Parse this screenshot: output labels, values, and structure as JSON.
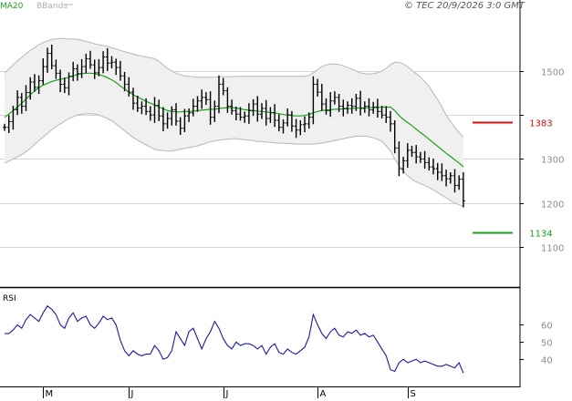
{
  "header": {
    "legend_ma": "MA20",
    "legend_bb": "BBands",
    "copyright": "© TEC 20/9/2026 3:0 GMT"
  },
  "colors": {
    "ma": "#1aa31a",
    "bands_fill": "#f0f0f0",
    "bands_line": "#b8b8b8",
    "ohlc": "#000000",
    "rsi": "#1a1aa0",
    "resistance": "#d01010",
    "support": "#1aa31a",
    "grid": "#d4d4d4",
    "frame": "#000000"
  },
  "chart_data": [
    {
      "type": "ohlc",
      "title": "",
      "ylim": [
        1040,
        1620
      ],
      "yticks": [
        1100,
        1200,
        1300,
        1400,
        1500
      ],
      "ytick_labels": [
        "1100",
        "1200",
        "1300",
        "",
        "1500"
      ],
      "xlabels": [
        {
          "label": "M",
          "index": 9
        },
        {
          "label": "J",
          "index": 29
        },
        {
          "label": "J",
          "index": 51
        },
        {
          "label": "A",
          "index": 73
        },
        {
          "label": "S",
          "index": 94
        }
      ],
      "levels": [
        {
          "name": "resistance",
          "label": "1383",
          "value": 1383
        },
        {
          "name": "support",
          "label": "1134",
          "value": 1134
        }
      ],
      "series": [
        {
          "name": "price",
          "values": [
            1372,
            1385,
            1412,
            1440,
            1420,
            1451,
            1475,
            1463,
            1478,
            1510,
            1540,
            1512,
            1495,
            1470,
            1462,
            1488,
            1505,
            1494,
            1510,
            1528,
            1514,
            1496,
            1508,
            1532,
            1518,
            1520,
            1508,
            1489,
            1470,
            1452,
            1427,
            1416,
            1420,
            1408,
            1400,
            1422,
            1398,
            1380,
            1392,
            1412,
            1386,
            1370,
            1398,
            1405,
            1420,
            1432,
            1440,
            1435,
            1395,
            1420,
            1470,
            1455,
            1420,
            1410,
            1402,
            1395,
            1398,
            1410,
            1425,
            1402,
            1415,
            1392,
            1405,
            1388,
            1372,
            1382,
            1400,
            1375,
            1366,
            1378,
            1380,
            1395,
            1470,
            1452,
            1425,
            1410,
            1432,
            1440,
            1420,
            1415,
            1422,
            1420,
            1438,
            1415,
            1420,
            1412,
            1418,
            1408,
            1400,
            1395,
            1380,
            1325,
            1278,
            1296,
            1320,
            1315,
            1305,
            1300,
            1292,
            1282,
            1278,
            1270,
            1262,
            1255,
            1262,
            1240,
            1254,
            1205
          ]
        },
        {
          "name": "MA20",
          "values": [
            1395,
            1402,
            1410,
            1418,
            1427,
            1436,
            1446,
            1455,
            1462,
            1468,
            1472,
            1476,
            1479,
            1481,
            1483,
            1486,
            1489,
            1492,
            1494,
            1495,
            1495,
            1494,
            1492,
            1489,
            1485,
            1480,
            1474,
            1466,
            1459,
            1452,
            1446,
            1441,
            1436,
            1431,
            1427,
            1423,
            1418,
            1414,
            1410,
            1408,
            1407,
            1407,
            1408,
            1408,
            1409,
            1410,
            1411,
            1412,
            1413,
            1413,
            1415,
            1416,
            1417,
            1417,
            1416,
            1414,
            1412,
            1411,
            1410,
            1409,
            1408,
            1407,
            1406,
            1405,
            1403,
            1401,
            1400,
            1399,
            1398,
            1398,
            1399,
            1401,
            1405,
            1408,
            1410,
            1411,
            1412,
            1413,
            1413,
            1414,
            1414,
            1415,
            1416,
            1416,
            1416,
            1417,
            1417,
            1417,
            1418,
            1418,
            1418,
            1410,
            1399,
            1390,
            1383,
            1376,
            1368,
            1360,
            1353,
            1345,
            1337,
            1329,
            1321,
            1313,
            1306,
            1298,
            1291,
            1282
          ]
        },
        {
          "name": "BBands upper",
          "values": [
            1495,
            1505,
            1514,
            1523,
            1531,
            1539,
            1547,
            1553,
            1560,
            1565,
            1568,
            1572,
            1573,
            1574,
            1574,
            1573,
            1573,
            1572,
            1570,
            1567,
            1565,
            1562,
            1560,
            1558,
            1556,
            1553,
            1550,
            1547,
            1544,
            1541,
            1539,
            1536,
            1534,
            1532,
            1530,
            1528,
            1522,
            1514,
            1506,
            1500,
            1495,
            1492,
            1489,
            1488,
            1487,
            1486,
            1486,
            1486,
            1486,
            1486,
            1487,
            1487,
            1487,
            1487,
            1488,
            1488,
            1488,
            1488,
            1488,
            1488,
            1488,
            1488,
            1488,
            1488,
            1488,
            1488,
            1488,
            1488,
            1488,
            1488,
            1488,
            1490,
            1496,
            1503,
            1510,
            1514,
            1516,
            1516,
            1515,
            1512,
            1508,
            1504,
            1500,
            1496,
            1494,
            1493,
            1494,
            1496,
            1500,
            1506,
            1514,
            1520,
            1520,
            1516,
            1510,
            1502,
            1494,
            1486,
            1476,
            1465,
            1450,
            1435,
            1418,
            1400,
            1385,
            1372,
            1360,
            1350
          ]
        },
        {
          "name": "BBands lower",
          "values": [
            1290,
            1295,
            1300,
            1305,
            1310,
            1317,
            1324,
            1333,
            1342,
            1350,
            1358,
            1366,
            1374,
            1380,
            1386,
            1392,
            1396,
            1400,
            1402,
            1403,
            1403,
            1402,
            1400,
            1396,
            1392,
            1387,
            1380,
            1372,
            1364,
            1356,
            1349,
            1343,
            1337,
            1332,
            1327,
            1322,
            1320,
            1319,
            1318,
            1318,
            1320,
            1322,
            1324,
            1326,
            1328,
            1330,
            1333,
            1336,
            1339,
            1341,
            1343,
            1344,
            1345,
            1346,
            1346,
            1345,
            1344,
            1343,
            1342,
            1340,
            1340,
            1339,
            1338,
            1337,
            1336,
            1336,
            1335,
            1335,
            1334,
            1334,
            1334,
            1334,
            1334,
            1335,
            1336,
            1338,
            1340,
            1342,
            1344,
            1346,
            1348,
            1350,
            1352,
            1352,
            1352,
            1350,
            1348,
            1345,
            1340,
            1330,
            1318,
            1300,
            1285,
            1272,
            1262,
            1254,
            1248,
            1244,
            1240,
            1235,
            1230,
            1224,
            1218,
            1212,
            1206,
            1200,
            1196,
            1192
          ]
        }
      ]
    },
    {
      "type": "line",
      "title": "RSI",
      "ylim": [
        29,
        74
      ],
      "yticks": [
        40,
        50,
        60
      ],
      "ytick_labels": [
        "40",
        "50",
        "60"
      ],
      "series": [
        {
          "name": "RSI",
          "values": [
            55,
            55,
            57,
            60,
            58,
            63,
            66,
            64,
            62,
            67,
            71,
            69,
            66,
            60,
            58,
            64,
            67,
            62,
            64,
            65,
            60,
            58,
            61,
            65,
            63,
            64,
            60,
            51,
            45,
            42,
            45,
            43,
            42,
            43,
            43,
            48,
            45,
            40,
            41,
            45,
            56,
            52,
            48,
            56,
            58,
            52,
            46,
            52,
            56,
            62,
            58,
            52,
            48,
            46,
            50,
            48,
            49,
            49,
            48,
            46,
            48,
            43,
            47,
            49,
            44,
            43,
            46,
            44,
            43,
            45,
            47,
            53,
            66,
            60,
            55,
            52,
            56,
            58,
            54,
            53,
            56,
            55,
            57,
            54,
            55,
            53,
            54,
            50,
            46,
            42,
            34,
            33,
            38,
            40,
            38,
            39,
            40,
            38,
            39,
            38,
            37,
            36,
            36,
            37,
            36,
            35,
            38,
            32
          ]
        }
      ]
    }
  ]
}
